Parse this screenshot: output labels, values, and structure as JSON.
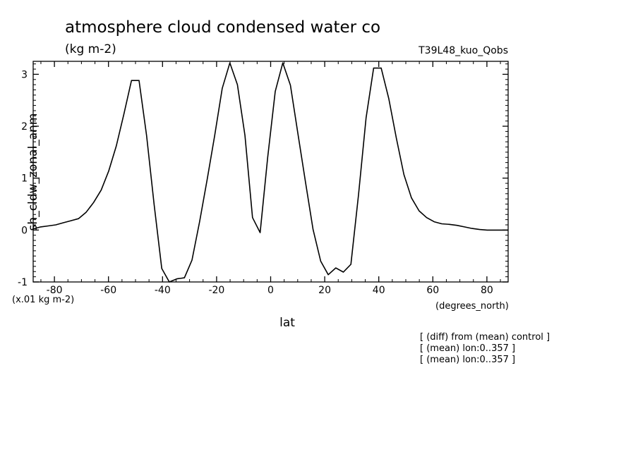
{
  "chart_data": {
    "type": "line",
    "title": "atmosphere cloud condensed water co",
    "units": "(kg m-2)",
    "experiment": "T39L48_kuo_Qobs",
    "ylabel": "sh_cldw_zonal_anm",
    "xlabel": "lat",
    "xunits": "(degrees_north)",
    "scale_note": "(x.01 kg m-2)",
    "xlim": [
      -87.86,
      87.86
    ],
    "ylim": [
      -1,
      3.25
    ],
    "xticks": [
      -80,
      -60,
      -40,
      -20,
      0,
      20,
      40,
      60,
      80
    ],
    "yticks": [
      -1,
      0,
      1,
      2,
      3
    ],
    "xtick_labels": [
      "-80",
      "-60",
      "-40",
      "-20",
      "0",
      "20",
      "40",
      "60",
      "80"
    ],
    "ytick_labels": [
      "-1",
      "0",
      "1",
      "2",
      "3"
    ],
    "grid": false,
    "notes": [
      "[ (diff) from (mean) control ]",
      "[ (mean) lon:0..357 ]",
      "[ (mean) lon:0..357 ]"
    ],
    "x": [
      -87.9,
      -85.1,
      -82.3,
      -79.5,
      -76.7,
      -73.9,
      -71.1,
      -68.3,
      -65.5,
      -62.7,
      -59.9,
      -57.1,
      -54.3,
      -51.5,
      -48.7,
      -45.9,
      -43.1,
      -40.3,
      -37.5,
      -34.7,
      -31.9,
      -29.1,
      -26.3,
      -23.5,
      -20.7,
      -17.9,
      -15.1,
      -12.3,
      -9.5,
      -6.7,
      -3.9,
      -1.1,
      1.7,
      4.5,
      7.3,
      10.1,
      12.9,
      15.7,
      18.5,
      21.3,
      24.1,
      26.9,
      29.7,
      32.5,
      35.3,
      38.1,
      40.9,
      43.7,
      46.5,
      49.3,
      52.1,
      54.9,
      57.7,
      60.5,
      63.3,
      66.1,
      68.9,
      71.7,
      74.5,
      77.3,
      80.1,
      82.9,
      85.7,
      87.9
    ],
    "series": [
      {
        "values": [
          0.02,
          0.06,
          0.08,
          0.1,
          0.14,
          0.18,
          0.22,
          0.34,
          0.53,
          0.77,
          1.14,
          1.62,
          2.23,
          2.88,
          2.88,
          1.82,
          0.49,
          -0.74,
          -1.0,
          -0.94,
          -0.92,
          -0.58,
          0.16,
          0.97,
          1.82,
          2.73,
          3.22,
          2.8,
          1.82,
          0.24,
          -0.05,
          1.4,
          2.67,
          3.22,
          2.79,
          1.85,
          0.92,
          0.01,
          -0.6,
          -0.86,
          -0.73,
          -0.81,
          -0.66,
          0.68,
          2.16,
          3.12,
          3.12,
          2.53,
          1.77,
          1.07,
          0.62,
          0.37,
          0.24,
          0.16,
          0.12,
          0.11,
          0.09,
          0.06,
          0.03,
          0.01,
          0.0,
          0.0,
          0.0,
          0.0
        ]
      }
    ]
  }
}
